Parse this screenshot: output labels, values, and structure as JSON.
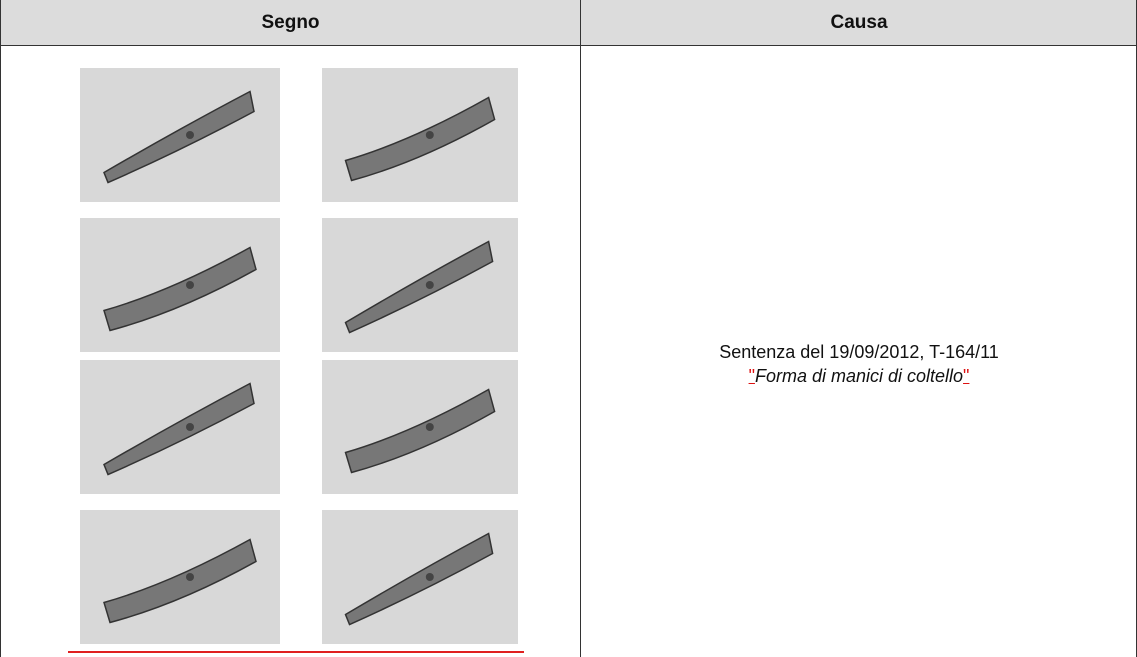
{
  "table": {
    "headers": [
      "Segno",
      "Causa"
    ],
    "cause": {
      "line1": "Sentenza del 19/09/2012, T-164/11",
      "quote_open": "\"",
      "title": "Forma di manici di coltello",
      "quote_close": "\""
    }
  }
}
